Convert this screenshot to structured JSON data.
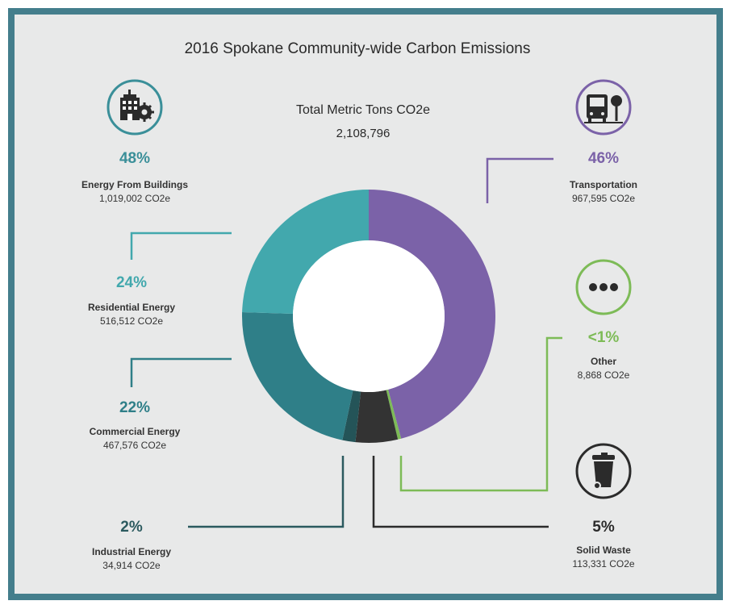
{
  "title": "2016 Spokane Community-wide Carbon Emissions",
  "total": {
    "label": "Total Metric Tons CO2e",
    "value": "2,108,796"
  },
  "categories": {
    "buildings": {
      "pct": "48%",
      "name": "Energy From Buildings",
      "value": "1,019,002 CO2e",
      "color": "#3a8f99",
      "icon": "building-gear-icon"
    },
    "residential": {
      "pct": "24%",
      "name": "Residential Energy",
      "value": "516,512 CO2e",
      "color": "#42a8ad"
    },
    "commercial": {
      "pct": "22%",
      "name": "Commercial Energy",
      "value": "467,576 CO2e",
      "color": "#2f7f88"
    },
    "industrial": {
      "pct": "2%",
      "name": "Industrial Energy",
      "value": "34,914 CO2e",
      "color": "#2b5a5f"
    },
    "transportation": {
      "pct": "46%",
      "name": "Transportation",
      "value": "967,595 CO2e",
      "color": "#7b62a8",
      "icon": "bus-tree-icon"
    },
    "other": {
      "pct": "<1%",
      "name": "Other",
      "value": "8,868 CO2e",
      "color": "#7dbb57",
      "icon": "ellipsis-icon"
    },
    "solid_waste": {
      "pct": "5%",
      "name": "Solid Waste",
      "value": "113,331 CO2e",
      "color": "#2b2b2b",
      "icon": "trash-bin-icon"
    }
  },
  "chart_data": {
    "type": "pie",
    "donut": true,
    "title": "2016 Spokane Community-wide Carbon Emissions",
    "unit": "CO2e",
    "total": 2108796,
    "slices": [
      {
        "label": "Transportation",
        "value": 967595,
        "percent": "46%",
        "color": "#7b62a8"
      },
      {
        "label": "Other",
        "value": 8868,
        "percent": "<1%",
        "color": "#7dbb57"
      },
      {
        "label": "Solid Waste",
        "value": 113331,
        "percent": "5%",
        "color": "#333333"
      },
      {
        "label": "Industrial Energy",
        "value": 34914,
        "percent": "2%",
        "color": "#245458"
      },
      {
        "label": "Commercial Energy",
        "value": 467576,
        "percent": "22%",
        "color": "#2f7f88"
      },
      {
        "label": "Residential Energy",
        "value": 516512,
        "percent": "24%",
        "color": "#42a8ad"
      }
    ]
  }
}
